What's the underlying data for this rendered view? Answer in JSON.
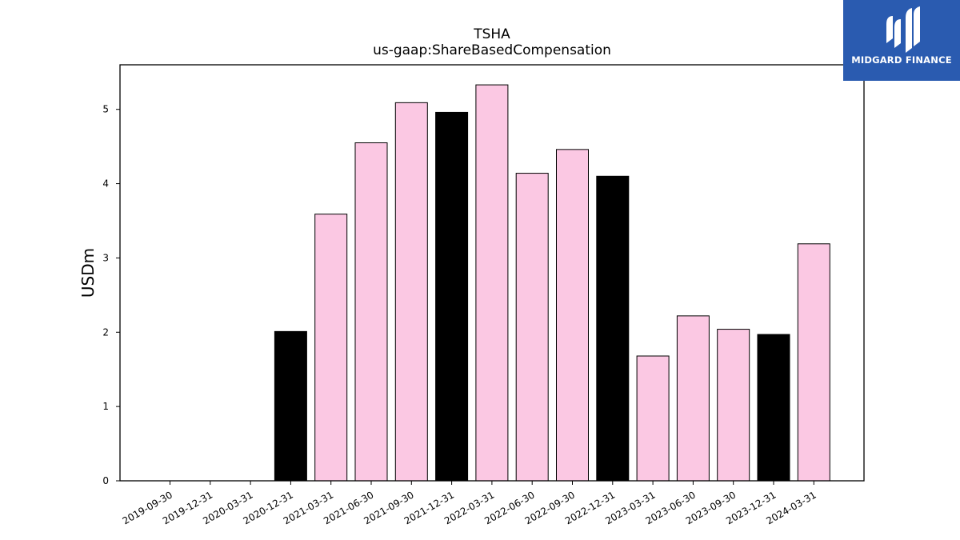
{
  "chart_data": {
    "type": "bar",
    "title": "TSHA",
    "subtitle": "us-gaap:ShareBasedCompensation",
    "xlabel": "",
    "ylabel": "USDm",
    "ylim": [
      0,
      5.6
    ],
    "yticks": [
      0,
      1,
      2,
      3,
      4,
      5
    ],
    "grid": false,
    "colors": {
      "quarter": "#fbc8e3",
      "year_end": "#000000",
      "edge": "#000000"
    },
    "categories": [
      "2019-09-30",
      "2019-12-31",
      "2020-03-31",
      "2020-12-31",
      "2021-03-31",
      "2021-06-30",
      "2021-09-30",
      "2021-12-31",
      "2022-03-31",
      "2022-06-30",
      "2022-09-30",
      "2022-12-31",
      "2023-03-31",
      "2023-06-30",
      "2023-09-30",
      "2023-12-31",
      "2024-03-31"
    ],
    "values": [
      0,
      0,
      0,
      2.01,
      3.59,
      4.55,
      5.09,
      4.96,
      5.33,
      4.14,
      4.46,
      4.1,
      1.68,
      2.22,
      2.04,
      1.97,
      3.19
    ],
    "kinds": [
      "q",
      "q",
      "q",
      "y",
      "q",
      "q",
      "q",
      "y",
      "q",
      "q",
      "q",
      "y",
      "q",
      "q",
      "q",
      "y",
      "q"
    ]
  },
  "logo": {
    "text": "MIDGARD FINANCE",
    "background": "#2a5bb0"
  }
}
